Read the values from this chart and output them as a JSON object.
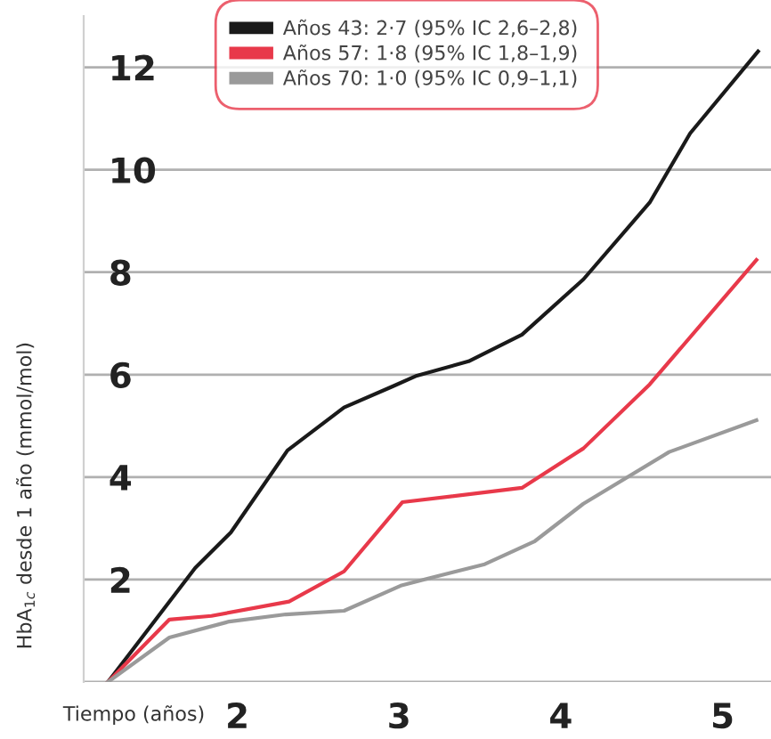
{
  "chart_data": {
    "type": "line",
    "xlabel": "Tiempo (años)",
    "ylabel": "HbA$_{1c}$ desde 1 año (mmol/mol)",
    "xlim": [
      1.05,
      5.3
    ],
    "xticks": [
      2,
      3,
      4,
      5
    ],
    "ylim": [
      0,
      13
    ],
    "yticks": [
      2,
      4,
      6,
      8,
      10,
      12
    ],
    "grid": "y",
    "legend": "top",
    "marker": "none",
    "line_style": "solid",
    "series": [
      {
        "name": "Años 43: 2·7 (95% IC 2,6–2,8)",
        "color": "#1a1a1a",
        "x": [
          1.2,
          1.74,
          1.96,
          2.31,
          2.66,
          2.96,
          3.11,
          3.43,
          3.76,
          4.14,
          4.55,
          4.8,
          5.22
        ],
        "values": [
          0,
          2.23,
          2.92,
          4.52,
          5.36,
          5.77,
          5.98,
          6.26,
          6.78,
          7.86,
          9.36,
          10.71,
          12.31
        ]
      },
      {
        "name": "Años 57: 1·8 (95% IC 1,8–1,9)",
        "color": "#e8394a",
        "x": [
          1.2,
          1.58,
          1.84,
          2.32,
          2.66,
          3.02,
          3.76,
          4.14,
          4.55,
          5.21
        ],
        "values": [
          0,
          1.22,
          1.29,
          1.57,
          2.16,
          3.51,
          3.79,
          4.56,
          5.81,
          8.24
        ]
      },
      {
        "name": "Años 70: 1·0 (95% IC 0,9–1,1)",
        "color": "#9a9a9a",
        "x": [
          1.2,
          1.58,
          1.95,
          2.3,
          2.66,
          3.01,
          3.18,
          3.53,
          3.84,
          4.14,
          4.67,
          5.21
        ],
        "values": [
          0,
          0.87,
          1.18,
          1.32,
          1.39,
          1.88,
          2.02,
          2.3,
          2.75,
          3.48,
          4.49,
          5.11
        ]
      }
    ]
  }
}
